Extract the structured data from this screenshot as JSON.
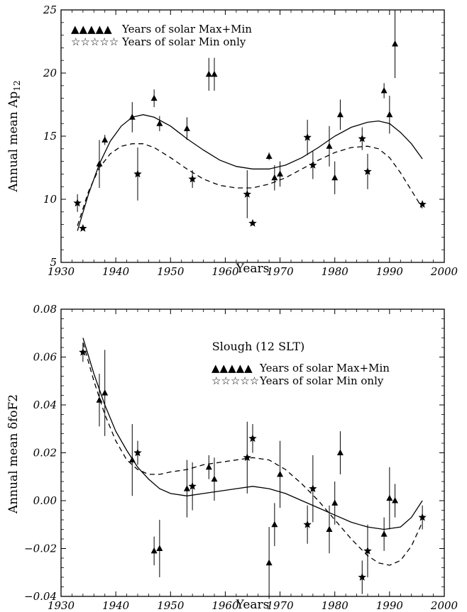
{
  "chart_data": [
    {
      "type": "scatter",
      "title": "",
      "xlabel": "Years",
      "ylabel": "Annual mean Ap",
      "ylabel_sub": "12",
      "xlim": [
        1930,
        2000
      ],
      "ylim": [
        5,
        25
      ],
      "x_ticks": [
        "1930",
        "1940",
        "1950",
        "1960",
        "1970",
        "1980",
        "1990",
        "2000"
      ],
      "y_ticks": [
        "5",
        "10",
        "15",
        "20",
        "25"
      ],
      "grid": false,
      "legend_placement": "top-left",
      "legend": [
        {
          "marker": "▲▲▲▲▲",
          "label": "Years of solar Max+Min"
        },
        {
          "marker": "☆☆☆☆☆",
          "label": "Years of solar Min only"
        }
      ],
      "series": [
        {
          "name": "Years of solar Max+Min",
          "marker": "triangle",
          "points": [
            {
              "x": 1937,
              "y": 12.8,
              "err": 1.9
            },
            {
              "x": 1938,
              "y": 14.7,
              "err": 0.4
            },
            {
              "x": 1943,
              "y": 16.5,
              "err": 1.2
            },
            {
              "x": 1947,
              "y": 18.0,
              "err": 0.7
            },
            {
              "x": 1948,
              "y": 16.0,
              "err": 0.6
            },
            {
              "x": 1953,
              "y": 15.6,
              "err": 0.9
            },
            {
              "x": 1957,
              "y": 19.9,
              "err": 1.3
            },
            {
              "x": 1958,
              "y": 19.9,
              "err": 1.3
            },
            {
              "x": 1968,
              "y": 13.4,
              "err": 0.3
            },
            {
              "x": 1969,
              "y": 11.7,
              "err": 1.0
            },
            {
              "x": 1970,
              "y": 12.0,
              "err": 1.0
            },
            {
              "x": 1979,
              "y": 14.2,
              "err": 1.6
            },
            {
              "x": 1980,
              "y": 11.7,
              "err": 1.3
            },
            {
              "x": 1981,
              "y": 16.7,
              "err": 1.2
            },
            {
              "x": 1989,
              "y": 18.6,
              "err": 0.6
            },
            {
              "x": 1990,
              "y": 16.7,
              "err": 1.5
            },
            {
              "x": 1991,
              "y": 22.3,
              "err": 2.7
            }
          ]
        },
        {
          "name": "Years of solar Min only",
          "marker": "star",
          "points": [
            {
              "x": 1933,
              "y": 9.7,
              "err": 0.7
            },
            {
              "x": 1934,
              "y": 7.7,
              "err": 0.0
            },
            {
              "x": 1944,
              "y": 12.0,
              "err": 2.1
            },
            {
              "x": 1954,
              "y": 11.6,
              "err": 0.7
            },
            {
              "x": 1964,
              "y": 10.4,
              "err": 1.9
            },
            {
              "x": 1965,
              "y": 8.1,
              "err": 0.0
            },
            {
              "x": 1975,
              "y": 14.9,
              "err": 1.4
            },
            {
              "x": 1976,
              "y": 12.7,
              "err": 1.1
            },
            {
              "x": 1985,
              "y": 14.8,
              "err": 0.9
            },
            {
              "x": 1986,
              "y": 12.2,
              "err": 1.4
            },
            {
              "x": 1996,
              "y": 9.6,
              "err": 0.0
            }
          ]
        }
      ],
      "fit_curves": [
        {
          "style": "solid",
          "x": [
            1933,
            1935,
            1937,
            1939,
            1941,
            1943,
            1945,
            1947,
            1950,
            1953,
            1956,
            1959,
            1962,
            1965,
            1968,
            1971,
            1974,
            1977,
            1980,
            1983,
            1986,
            1988,
            1990,
            1992,
            1994,
            1996
          ],
          "y": [
            7.5,
            10.4,
            12.8,
            14.6,
            15.8,
            16.5,
            16.7,
            16.5,
            15.8,
            14.8,
            13.9,
            13.1,
            12.6,
            12.4,
            12.4,
            12.7,
            13.3,
            14.1,
            15.0,
            15.7,
            16.1,
            16.2,
            16.0,
            15.3,
            14.4,
            13.2
          ]
        },
        {
          "style": "dashed",
          "x": [
            1933,
            1935,
            1937,
            1939,
            1941,
            1943,
            1945,
            1947,
            1950,
            1953,
            1956,
            1959,
            1962,
            1965,
            1968,
            1971,
            1974,
            1977,
            1980,
            1983,
            1986,
            1988,
            1990,
            1992,
            1994,
            1996
          ],
          "y": [
            7.9,
            10.6,
            12.5,
            13.6,
            14.2,
            14.4,
            14.4,
            14.1,
            13.3,
            12.4,
            11.6,
            11.1,
            10.9,
            10.9,
            11.2,
            11.7,
            12.4,
            13.1,
            13.7,
            14.1,
            14.2,
            14.0,
            13.3,
            12.1,
            10.7,
            9.3
          ]
        }
      ]
    },
    {
      "type": "scatter",
      "title": "Slough (12 SLT)",
      "xlabel": "Years",
      "ylabel": "Annual mean δfoF2",
      "xlim": [
        1930,
        2000
      ],
      "ylim": [
        -0.04,
        0.08
      ],
      "x_ticks": [
        "1930",
        "1940",
        "1950",
        "1960",
        "1970",
        "1980",
        "1990",
        "2000"
      ],
      "y_ticks": [
        "−0.04",
        "−0.02",
        "0.00",
        "0.02",
        "0.04",
        "0.06",
        "0.08"
      ],
      "grid": false,
      "legend_placement": "top-right",
      "legend": [
        {
          "marker": "▲▲▲▲▲",
          "label": "Years of solar Max+Min"
        },
        {
          "marker": "☆☆☆☆☆",
          "label": "Years of solar Min only"
        }
      ],
      "series": [
        {
          "name": "Years of solar Max+Min",
          "marker": "triangle",
          "points": [
            {
              "x": 1937,
              "y": 0.042,
              "err": 0.011
            },
            {
              "x": 1938,
              "y": 0.045,
              "err": 0.018
            },
            {
              "x": 1943,
              "y": 0.017,
              "err": 0.015
            },
            {
              "x": 1947,
              "y": -0.021,
              "err": 0.006
            },
            {
              "x": 1948,
              "y": -0.02,
              "err": 0.012
            },
            {
              "x": 1953,
              "y": 0.005,
              "err": 0.012
            },
            {
              "x": 1957,
              "y": 0.014,
              "err": 0.005
            },
            {
              "x": 1958,
              "y": 0.009,
              "err": 0.009
            },
            {
              "x": 1968,
              "y": -0.026,
              "err": 0.015
            },
            {
              "x": 1969,
              "y": -0.01,
              "err": 0.009
            },
            {
              "x": 1970,
              "y": 0.011,
              "err": 0.014
            },
            {
              "x": 1979,
              "y": -0.012,
              "err": 0.01
            },
            {
              "x": 1980,
              "y": -0.001,
              "err": 0.009
            },
            {
              "x": 1981,
              "y": 0.02,
              "err": 0.009
            },
            {
              "x": 1989,
              "y": -0.014,
              "err": 0.007
            },
            {
              "x": 1990,
              "y": 0.001,
              "err": 0.013
            },
            {
              "x": 1991,
              "y": 0.0,
              "err": 0.007
            }
          ]
        },
        {
          "name": "Years of solar Min only",
          "marker": "star",
          "points": [
            {
              "x": 1934,
              "y": 0.062,
              "err": 0.004
            },
            {
              "x": 1944,
              "y": 0.02,
              "err": 0.005
            },
            {
              "x": 1954,
              "y": 0.006,
              "err": 0.01
            },
            {
              "x": 1964,
              "y": 0.018,
              "err": 0.015
            },
            {
              "x": 1965,
              "y": 0.026,
              "err": 0.006
            },
            {
              "x": 1975,
              "y": -0.01,
              "err": 0.008
            },
            {
              "x": 1976,
              "y": 0.005,
              "err": 0.014
            },
            {
              "x": 1985,
              "y": -0.032,
              "err": 0.007
            },
            {
              "x": 1986,
              "y": -0.021,
              "err": 0.011
            },
            {
              "x": 1996,
              "y": -0.007,
              "err": 0.005
            }
          ]
        }
      ],
      "fit_curves": [
        {
          "style": "solid",
          "x": [
            1934,
            1936,
            1938,
            1940,
            1942,
            1944,
            1946,
            1948,
            1950,
            1953,
            1956,
            1959,
            1962,
            1965,
            1968,
            1971,
            1974,
            1977,
            1980,
            1983,
            1986,
            1989,
            1992,
            1994,
            1996
          ],
          "y": [
            0.068,
            0.053,
            0.04,
            0.029,
            0.021,
            0.014,
            0.009,
            0.005,
            0.003,
            0.002,
            0.003,
            0.004,
            0.005,
            0.006,
            0.005,
            0.003,
            0.0,
            -0.003,
            -0.006,
            -0.009,
            -0.011,
            -0.012,
            -0.011,
            -0.007,
            0.0
          ]
        },
        {
          "style": "dashed",
          "x": [
            1934,
            1936,
            1938,
            1940,
            1942,
            1944,
            1946,
            1948,
            1950,
            1953,
            1956,
            1959,
            1962,
            1965,
            1968,
            1971,
            1974,
            1977,
            1980,
            1983,
            1986,
            1988,
            1990,
            1992,
            1994,
            1996
          ],
          "y": [
            0.066,
            0.05,
            0.036,
            0.025,
            0.017,
            0.013,
            0.011,
            0.011,
            0.012,
            0.013,
            0.015,
            0.016,
            0.017,
            0.018,
            0.017,
            0.013,
            0.007,
            0.0,
            -0.008,
            -0.016,
            -0.023,
            -0.026,
            -0.027,
            -0.025,
            -0.019,
            -0.009
          ]
        }
      ]
    }
  ]
}
